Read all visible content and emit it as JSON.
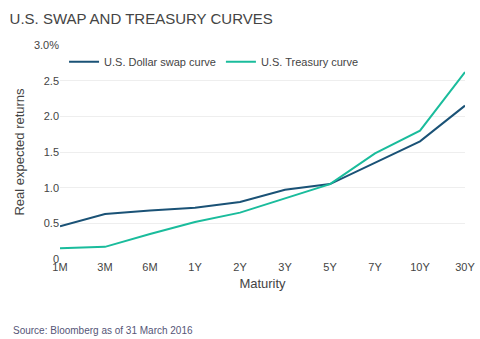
{
  "chart_data": {
    "type": "line",
    "title": "U.S. SWAP AND TREASURY CURVES",
    "x_label": "Maturity",
    "y_label": "Real expected returns",
    "annotations": [
      "Source: Bloomberg as of 31 March 2016"
    ],
    "categories": [
      "1M",
      "3M",
      "6M",
      "1Y",
      "2Y",
      "3Y",
      "5Y",
      "7Y",
      "10Y",
      "30Y"
    ],
    "series": [
      {
        "name": "U.S. Dollar swap curve",
        "color": "#1a5276",
        "values": [
          0.46,
          0.63,
          0.68,
          0.72,
          0.8,
          0.97,
          1.05,
          1.35,
          1.65,
          2.15
        ]
      },
      {
        "name": "U.S. Treasury curve",
        "color": "#1abc9c",
        "values": [
          0.15,
          0.17,
          0.35,
          0.52,
          0.65,
          0.85,
          1.05,
          1.48,
          1.8,
          2.62
        ]
      }
    ],
    "ylim": [
      0,
      3.0
    ],
    "yticks": [
      0,
      0.5,
      {
        "value": 1.0,
        "label": "1.0"
      },
      1.5,
      {
        "value": 2.0,
        "label": "2.0"
      },
      2.5,
      {
        "value": 3.0,
        "label": "3.0%"
      }
    ],
    "grid": true,
    "legend": "top left"
  }
}
